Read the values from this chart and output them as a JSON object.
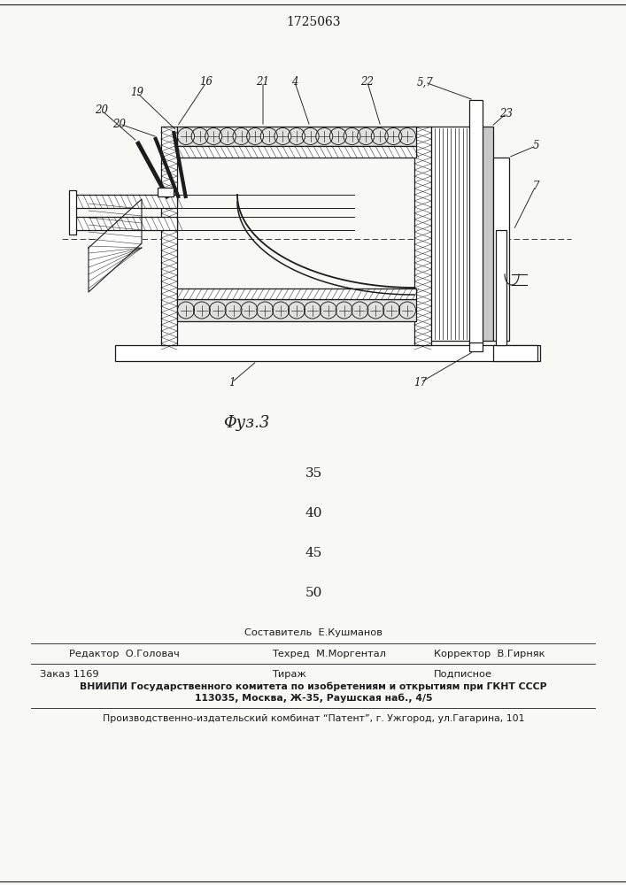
{
  "title": "1725063",
  "fig_label": "Φуз.3",
  "background_color": "#f8f8f5",
  "numbers_middle": [
    "35",
    "40",
    "45",
    "50"
  ],
  "footer_line1_left": "Редактор  О.Головач",
  "footer_line1_center": "Составитель  Е.Кушманов",
  "footer_line1_right": "Корректор  В.Гирняк",
  "footer_line2_center": "Техред  М.Моргентал",
  "footer_line3_left": "Заказ 1169",
  "footer_line3_center": "Тираж",
  "footer_line3_right": "Подписное",
  "footer_line4": "ВНИИПИ Государственного комитета по изобретениям и открытиям при ГКНТ СССР",
  "footer_line5": "113035, Москва, Ж-35, Раушская наб., 4/5",
  "footer_line6": "Производственно-издательский комбинат “Патент”, г. Ужгород, ул.Гагарина, 101"
}
